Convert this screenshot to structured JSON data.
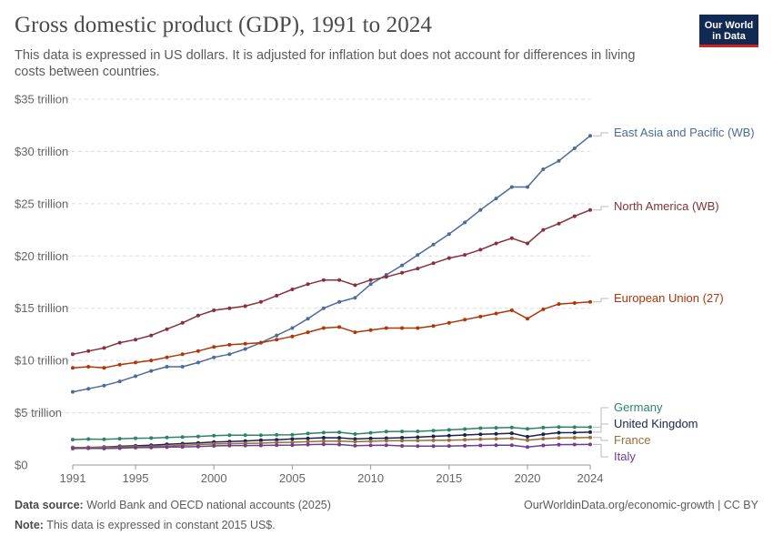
{
  "title": "Gross domestic product (GDP), 1991 to 2024",
  "subtitle": "This data is expressed in US dollars. It is adjusted for inflation but does not account for differences in living costs between countries.",
  "logo": {
    "line1": "Our World",
    "line2": "in Data"
  },
  "footer": {
    "source_label": "Data source:",
    "source_text": "World Bank and OECD national accounts (2025)",
    "note_label": "Note:",
    "note_text": "This data is expressed in constant 2015 US$.",
    "url": "OurWorldinData.org/economic-growth | CC BY"
  },
  "colors": {
    "East Asia and Pacific (WB)": "#4c6a9c",
    "North America (WB)": "#883039",
    "European Union (27)": "#b13507",
    "Germany": "#2c8465",
    "United Kingdom": "#18254d",
    "France": "#996d39",
    "Italy": "#6d3e91"
  },
  "chart_data": {
    "type": "line",
    "x_ticks": [
      1991,
      1995,
      2000,
      2005,
      2010,
      2015,
      2020,
      2024
    ],
    "y_ticks": [
      0,
      5,
      10,
      15,
      20,
      25,
      30,
      35
    ],
    "y_tick_labels": [
      "$0",
      "$5 trillion",
      "$10 trillion",
      "$15 trillion",
      "$20 trillion",
      "$25 trillion",
      "$30 trillion",
      "$35 trillion"
    ],
    "xlim": [
      1991,
      2024
    ],
    "ylim": [
      0,
      35
    ],
    "grid": "horizontal dashed",
    "legend": "right, labels at line ends",
    "x": [
      1991,
      1992,
      1993,
      1994,
      1995,
      1996,
      1997,
      1998,
      1999,
      2000,
      2001,
      2002,
      2003,
      2004,
      2005,
      2006,
      2007,
      2008,
      2009,
      2010,
      2011,
      2012,
      2013,
      2014,
      2015,
      2016,
      2017,
      2018,
      2019,
      2020,
      2021,
      2022,
      2023,
      2024
    ],
    "series": [
      {
        "name": "East Asia and Pacific (WB)",
        "values": [
          7.0,
          7.3,
          7.6,
          8.0,
          8.5,
          9.0,
          9.4,
          9.4,
          9.8,
          10.3,
          10.6,
          11.1,
          11.7,
          12.4,
          13.1,
          14.0,
          15.0,
          15.6,
          16.0,
          17.3,
          18.2,
          19.1,
          20.1,
          21.1,
          22.1,
          23.2,
          24.4,
          25.5,
          26.6,
          26.6,
          28.3,
          29.1,
          30.3,
          31.5
        ]
      },
      {
        "name": "North America (WB)",
        "values": [
          10.6,
          10.9,
          11.2,
          11.7,
          12.0,
          12.4,
          13.0,
          13.6,
          14.3,
          14.8,
          15.0,
          15.2,
          15.6,
          16.2,
          16.8,
          17.3,
          17.7,
          17.7,
          17.2,
          17.7,
          18.0,
          18.4,
          18.8,
          19.3,
          19.8,
          20.1,
          20.6,
          21.2,
          21.7,
          21.2,
          22.5,
          23.1,
          23.8,
          24.4
        ]
      },
      {
        "name": "European Union (27)",
        "values": [
          9.3,
          9.4,
          9.3,
          9.6,
          9.8,
          10.0,
          10.3,
          10.6,
          10.9,
          11.3,
          11.5,
          11.6,
          11.7,
          12.0,
          12.3,
          12.7,
          13.1,
          13.2,
          12.7,
          12.9,
          13.1,
          13.1,
          13.1,
          13.3,
          13.6,
          13.9,
          14.2,
          14.5,
          14.8,
          14.0,
          14.9,
          15.4,
          15.5,
          15.6
        ]
      },
      {
        "name": "Germany",
        "values": [
          2.43,
          2.48,
          2.46,
          2.52,
          2.56,
          2.58,
          2.63,
          2.68,
          2.73,
          2.81,
          2.86,
          2.86,
          2.85,
          2.88,
          2.9,
          3.01,
          3.1,
          3.13,
          2.96,
          3.08,
          3.2,
          3.21,
          3.22,
          3.29,
          3.36,
          3.44,
          3.53,
          3.56,
          3.6,
          3.46,
          3.58,
          3.64,
          3.62,
          3.62
        ]
      },
      {
        "name": "United Kingdom",
        "values": [
          1.67,
          1.68,
          1.72,
          1.79,
          1.84,
          1.89,
          1.98,
          2.05,
          2.12,
          2.2,
          2.25,
          2.3,
          2.37,
          2.42,
          2.49,
          2.55,
          2.61,
          2.6,
          2.49,
          2.54,
          2.57,
          2.61,
          2.66,
          2.74,
          2.8,
          2.87,
          2.94,
          2.99,
          3.04,
          2.71,
          2.94,
          3.09,
          3.1,
          3.14
        ]
      },
      {
        "name": "France",
        "values": [
          1.66,
          1.69,
          1.68,
          1.72,
          1.76,
          1.78,
          1.82,
          1.88,
          1.95,
          2.01,
          2.05,
          2.07,
          2.09,
          2.15,
          2.18,
          2.23,
          2.28,
          2.29,
          2.23,
          2.27,
          2.32,
          2.33,
          2.34,
          2.36,
          2.38,
          2.41,
          2.47,
          2.51,
          2.56,
          2.37,
          2.52,
          2.59,
          2.61,
          2.64
        ]
      },
      {
        "name": "Italy",
        "values": [
          1.58,
          1.6,
          1.58,
          1.61,
          1.66,
          1.68,
          1.71,
          1.73,
          1.76,
          1.83,
          1.86,
          1.86,
          1.87,
          1.9,
          1.91,
          1.95,
          1.98,
          1.96,
          1.85,
          1.88,
          1.89,
          1.83,
          1.8,
          1.8,
          1.82,
          1.84,
          1.87,
          1.89,
          1.9,
          1.72,
          1.87,
          1.95,
          1.96,
          1.97
        ]
      }
    ]
  }
}
